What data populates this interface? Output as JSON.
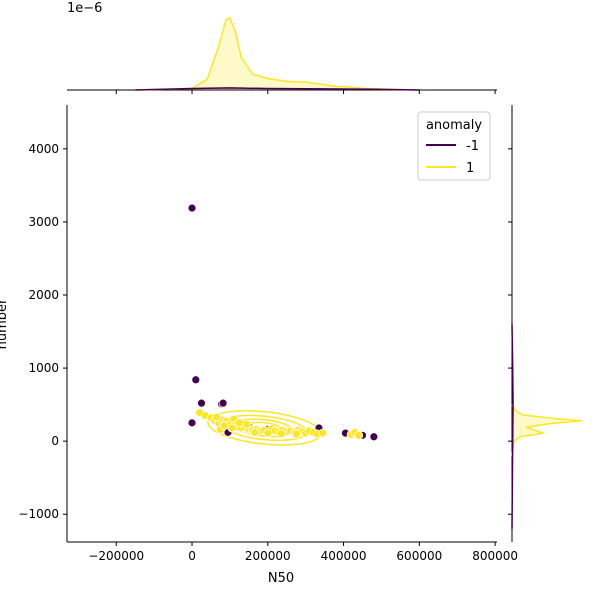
{
  "chart_data": {
    "type": "scatter",
    "subtype": "jointplot with KDE marginals",
    "x_label": "N50",
    "y_label": "number",
    "x_lim": [
      -330000,
      805000
    ],
    "y_lim": [
      -1380,
      4600
    ],
    "x_ticks": [
      -200000,
      0,
      200000,
      400000,
      600000,
      800000
    ],
    "x_tick_labels": [
      "−200000",
      "0",
      "200000",
      "400000",
      "600000",
      "800000"
    ],
    "y_ticks": [
      -1000,
      0,
      1000,
      2000,
      3000,
      4000
    ],
    "y_tick_labels": [
      "−1000",
      "0",
      "1000",
      "2000",
      "3000",
      "4000"
    ],
    "top_marginal_scale_label": "1e−6",
    "legend": {
      "title": "anomaly",
      "position": "top-right",
      "entries": [
        {
          "label": "-1",
          "color": "#440154"
        },
        {
          "label": "1",
          "color": "#fde725"
        }
      ]
    },
    "series": [
      {
        "name": "-1",
        "color": "#440154",
        "points": [
          [
            0,
            3190
          ],
          [
            10000,
            840
          ],
          [
            25000,
            520
          ],
          [
            78000,
            510
          ],
          [
            0,
            250
          ],
          [
            95000,
            120
          ],
          [
            200000,
            160
          ],
          [
            335000,
            180
          ],
          [
            405000,
            110
          ],
          [
            480000,
            60
          ],
          [
            450000,
            80
          ],
          [
            82000,
            520
          ],
          [
            150000,
            200
          ]
        ]
      },
      {
        "name": "1",
        "color": "#fde725",
        "points": [
          [
            20000,
            390
          ],
          [
            35000,
            350
          ],
          [
            50000,
            320
          ],
          [
            60000,
            280
          ],
          [
            70000,
            250
          ],
          [
            80000,
            290
          ],
          [
            90000,
            270
          ],
          [
            100000,
            230
          ],
          [
            110000,
            300
          ],
          [
            115000,
            220
          ],
          [
            120000,
            200
          ],
          [
            130000,
            180
          ],
          [
            140000,
            190
          ],
          [
            150000,
            170
          ],
          [
            160000,
            150
          ],
          [
            170000,
            160
          ],
          [
            180000,
            140
          ],
          [
            190000,
            150
          ],
          [
            210000,
            170
          ],
          [
            220000,
            140
          ],
          [
            230000,
            130
          ],
          [
            240000,
            150
          ],
          [
            250000,
            130
          ],
          [
            260000,
            140
          ],
          [
            270000,
            120
          ],
          [
            280000,
            150
          ],
          [
            290000,
            130
          ],
          [
            300000,
            110
          ],
          [
            310000,
            140
          ],
          [
            320000,
            120
          ],
          [
            330000,
            100
          ],
          [
            345000,
            110
          ],
          [
            420000,
            90
          ],
          [
            430000,
            120
          ],
          [
            440000,
            80
          ],
          [
            75000,
            160
          ],
          [
            85000,
            210
          ],
          [
            125000,
            250
          ],
          [
            145000,
            230
          ],
          [
            65000,
            330
          ],
          [
            105000,
            180
          ],
          [
            165000,
            120
          ],
          [
            200000,
            110
          ],
          [
            235000,
            100
          ],
          [
            275000,
            100
          ]
        ]
      }
    ],
    "marginal_x": {
      "series": [
        {
          "name": "1",
          "color": "#fde725",
          "fill": true,
          "points": [
            [
              -150000,
              0.0
            ],
            [
              0,
              0.02
            ],
            [
              40000,
              0.15
            ],
            [
              70000,
              0.6
            ],
            [
              90000,
              0.98
            ],
            [
              100000,
              1.0
            ],
            [
              115000,
              0.8
            ],
            [
              130000,
              0.45
            ],
            [
              160000,
              0.22
            ],
            [
              200000,
              0.16
            ],
            [
              250000,
              0.12
            ],
            [
              300000,
              0.11
            ],
            [
              340000,
              0.08
            ],
            [
              380000,
              0.05
            ],
            [
              420000,
              0.04
            ],
            [
              460000,
              0.02
            ],
            [
              520000,
              0.01
            ],
            [
              600000,
              0.0
            ]
          ]
        },
        {
          "name": "-1",
          "color": "#440154",
          "fill": true,
          "points": [
            [
              -150000,
              0.0
            ],
            [
              0,
              0.02
            ],
            [
              100000,
              0.03
            ],
            [
              200000,
              0.02
            ],
            [
              350000,
              0.015
            ],
            [
              480000,
              0.01
            ],
            [
              600000,
              0.0
            ]
          ]
        }
      ]
    },
    "marginal_y": {
      "series": [
        {
          "name": "1",
          "color": "#fde725",
          "fill": true,
          "points": [
            [
              -200,
              0.0
            ],
            [
              0,
              0.03
            ],
            [
              60,
              0.12
            ],
            [
              110,
              0.45
            ],
            [
              150,
              0.32
            ],
            [
              190,
              0.2
            ],
            [
              240,
              0.55
            ],
            [
              280,
              1.0
            ],
            [
              310,
              0.6
            ],
            [
              360,
              0.15
            ],
            [
              420,
              0.05
            ],
            [
              500,
              0.0
            ]
          ]
        },
        {
          "name": "-1",
          "color": "#440154",
          "fill": true,
          "points": [
            [
              -1200,
              0.0
            ],
            [
              0,
              0.01
            ],
            [
              500,
              0.015
            ],
            [
              1000,
              0.01
            ],
            [
              1600,
              0.0
            ]
          ]
        }
      ]
    }
  }
}
